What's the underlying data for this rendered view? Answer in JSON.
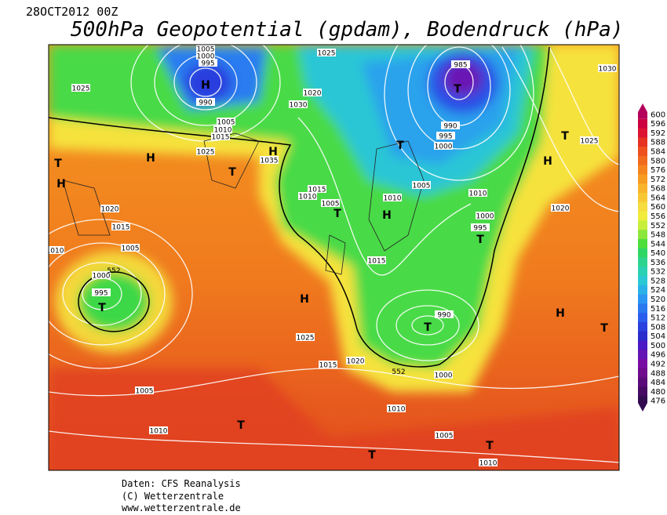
{
  "header": {
    "date": "28OCT2012 00Z",
    "title": "500hPa Geopotential (gpdam), Bodendruck (hPa)"
  },
  "map": {
    "pressure_labels": [
      "1025",
      "1025",
      "1030",
      "1020",
      "1005",
      "1010",
      "1015",
      "1025",
      "1035",
      "985",
      "990",
      "990",
      "995",
      "1000",
      "1030",
      "1025",
      "1020",
      "1010",
      "1005",
      "1010",
      "1015",
      "1010",
      "1005",
      "1000",
      "995",
      "1020",
      "1015",
      "1010",
      "1005",
      "1000",
      "995",
      "1015",
      "990",
      "1025",
      "1020",
      "1015",
      "1000",
      "1005",
      "1010",
      "1010",
      "1005",
      "1010",
      "1005",
      "1000",
      "995"
    ],
    "height_labels": [
      "552",
      "552"
    ],
    "centers": [
      "T",
      "H",
      "H",
      "T",
      "H",
      "T",
      "H",
      "T",
      "T",
      "T",
      "H",
      "T",
      "H",
      "T",
      "H",
      "T",
      "T",
      "H",
      "T",
      "T",
      "T"
    ]
  },
  "colorbar": {
    "levels": [
      600,
      596,
      592,
      588,
      584,
      580,
      576,
      572,
      568,
      564,
      560,
      556,
      552,
      548,
      544,
      540,
      536,
      532,
      528,
      524,
      520,
      516,
      512,
      508,
      504,
      500,
      496,
      492,
      488,
      484,
      480,
      476
    ],
    "colors": [
      "#b4005a",
      "#cc0040",
      "#dc1432",
      "#e63220",
      "#ee501e",
      "#f26a1e",
      "#f5841e",
      "#f79c22",
      "#f8b42a",
      "#f8c834",
      "#f7dc40",
      "#f0ec3c",
      "#c8ee3c",
      "#8ce63c",
      "#4ede3c",
      "#2ed664",
      "#2cd490",
      "#2ad2b4",
      "#2ac8d4",
      "#2ab2e8",
      "#2a96f2",
      "#2a78f0",
      "#2a5cee",
      "#2a40de",
      "#2a2ccc",
      "#4a18c4",
      "#6414b4",
      "#780ca2",
      "#6e0a8c",
      "#5a0a78",
      "#460a64",
      "#320a50"
    ]
  },
  "footer": {
    "source": "Daten: CFS Reanalysis",
    "copyright": "(C) Wetterzentrale",
    "url": "www.wetterzentrale.de"
  }
}
